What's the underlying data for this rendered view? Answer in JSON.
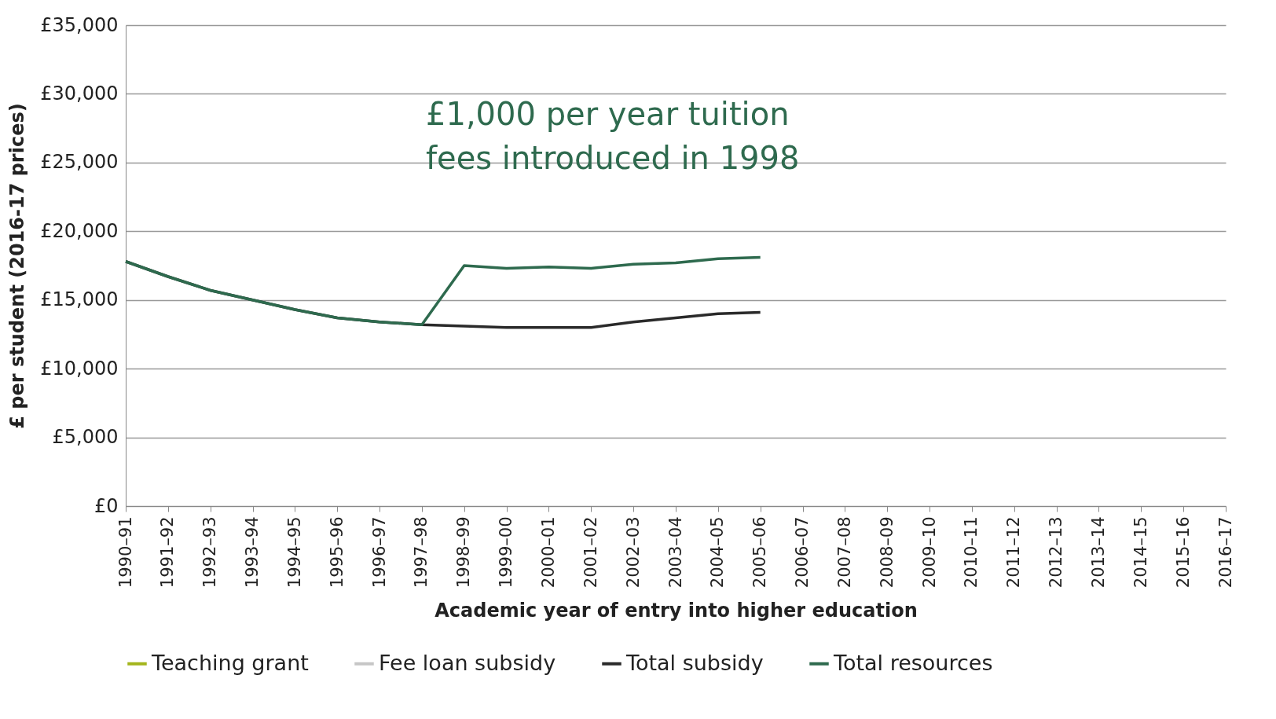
{
  "chart_data": {
    "type": "line",
    "xlabel": "Academic year of entry into higher education",
    "ylabel": "£ per student (2016-17 prices)",
    "categories": [
      "1990–91",
      "1991–92",
      "1992–93",
      "1993–94",
      "1994–95",
      "1995–96",
      "1996–97",
      "1997–98",
      "1998–99",
      "1999–00",
      "2000–01",
      "2001–02",
      "2002–03",
      "2003–04",
      "2004–05",
      "2005–06",
      "2006–07",
      "2007–08",
      "2008–09",
      "2009–10",
      "2010–11",
      "2011–12",
      "2012–13",
      "2013–14",
      "2014–15",
      "2015–16",
      "2016–17"
    ],
    "series": [
      {
        "name": "Teaching grant",
        "color": "#a3b51c",
        "values": [
          null,
          null,
          null,
          null,
          null,
          null,
          null,
          null,
          null,
          null,
          null,
          null,
          null,
          null,
          null,
          null,
          null,
          null,
          null,
          null,
          null,
          null,
          null,
          null,
          null,
          null,
          null
        ]
      },
      {
        "name": "Fee loan subsidy",
        "color": "#c6c6c6",
        "values": [
          null,
          null,
          null,
          null,
          null,
          null,
          null,
          null,
          null,
          null,
          null,
          null,
          null,
          null,
          null,
          null,
          null,
          null,
          null,
          null,
          null,
          null,
          null,
          null,
          null,
          null,
          null
        ]
      },
      {
        "name": "Total subsidy",
        "color": "#2a2a2a",
        "values": [
          17800,
          16700,
          15700,
          15000,
          14300,
          13700,
          13400,
          13200,
          13100,
          13000,
          13000,
          13000,
          13400,
          13700,
          14000,
          14100,
          null,
          null,
          null,
          null,
          null,
          null,
          null,
          null,
          null,
          null,
          null
        ]
      },
      {
        "name": "Total resources",
        "color": "#2e6a4e",
        "values": [
          17800,
          16700,
          15700,
          15000,
          14300,
          13700,
          13400,
          13200,
          17500,
          17300,
          17400,
          17300,
          17600,
          17700,
          18000,
          18100,
          null,
          null,
          null,
          null,
          null,
          null,
          null,
          null,
          null,
          null,
          null
        ]
      }
    ],
    "ylim": [
      0,
      35000
    ],
    "yticks": [
      {
        "value": 0,
        "label": "£0"
      },
      {
        "value": 5000,
        "label": "£5,000"
      },
      {
        "value": 10000,
        "label": "£10,000"
      },
      {
        "value": 15000,
        "label": "£15,000"
      },
      {
        "value": 20000,
        "label": "£20,000"
      },
      {
        "value": 25000,
        "label": "£25,000"
      },
      {
        "value": 30000,
        "label": "£30,000"
      },
      {
        "value": 35000,
        "label": "£35,000"
      }
    ],
    "grid": "y",
    "legend": "bottom",
    "marker": "none",
    "line_style": "solid",
    "annotations": [
      "£1,000 per year tuition fees introduced in 1998"
    ]
  }
}
